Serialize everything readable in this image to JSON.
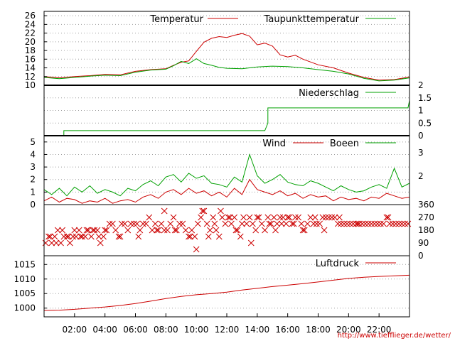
{
  "colors": {
    "red": "#cc0000",
    "green": "#00a000",
    "grid": "#a0a0a0",
    "frame": "#000000",
    "url": "#cc0000"
  },
  "source_url": "http://www.tiefflieger.de/wetter/",
  "x_ticks": [
    "02:00",
    "04:00",
    "06:00",
    "08:00",
    "10:00",
    "12:00",
    "14:00",
    "16:00",
    "18:00",
    "20:00",
    "22:00"
  ],
  "x_tick_hours": [
    2,
    4,
    6,
    8,
    10,
    12,
    14,
    16,
    18,
    20,
    22
  ],
  "chart_data": [
    {
      "type": "line",
      "x_unit": "hour of day",
      "xlim": [
        0,
        24
      ],
      "ylim": [
        10,
        27
      ],
      "y_ticks": [
        10,
        12,
        14,
        16,
        18,
        20,
        22,
        24,
        26
      ],
      "legend": "top-right",
      "grid": true,
      "series": [
        {
          "name": "Temperatur",
          "color": "#cc0000",
          "x": [
            0,
            1,
            2,
            3,
            4,
            5,
            6,
            7,
            8,
            8.5,
            9,
            9.5,
            10,
            10.5,
            11,
            11.5,
            12,
            12.5,
            13,
            13.5,
            14,
            14.5,
            15,
            15.5,
            16,
            16.5,
            17,
            18,
            19,
            20,
            21,
            22,
            23,
            24
          ],
          "y": [
            12.0,
            11.7,
            12.0,
            12.2,
            12.5,
            12.4,
            13.2,
            13.6,
            13.8,
            14.6,
            15.3,
            15.6,
            17.8,
            19.9,
            20.8,
            21.2,
            21.0,
            21.5,
            21.9,
            21.3,
            19.3,
            19.7,
            19.0,
            17.0,
            16.5,
            16.9,
            16.0,
            14.7,
            14.0,
            12.8,
            11.8,
            11.2,
            11.3,
            11.9
          ]
        },
        {
          "name": "Taupunkttemperatur",
          "color": "#00a000",
          "x": [
            0,
            1,
            2,
            3,
            4,
            5,
            6,
            7,
            8,
            8.5,
            9,
            9.5,
            10,
            10.5,
            11,
            11.5,
            12,
            13,
            14,
            15,
            16,
            17,
            18,
            19,
            20,
            21,
            22,
            23,
            24
          ],
          "y": [
            11.8,
            11.5,
            11.8,
            12.1,
            12.3,
            12.2,
            13.0,
            13.5,
            13.7,
            14.5,
            15.5,
            15.0,
            16.1,
            15.0,
            14.6,
            14.1,
            13.9,
            13.8,
            14.2,
            14.4,
            14.3,
            14.0,
            13.6,
            13.2,
            12.6,
            11.6,
            11.0,
            11.2,
            11.7
          ]
        }
      ]
    },
    {
      "type": "line",
      "x_unit": "hour of day",
      "xlim": [
        0,
        24
      ],
      "ylim": [
        0,
        2
      ],
      "y_ticks": [
        "0",
        "0.5",
        "1",
        "1.5",
        "2"
      ],
      "legend": "top-right",
      "grid": true,
      "series": [
        {
          "name": "Niederschlag",
          "color": "#00a000",
          "x": [
            0,
            1.3,
            1.3,
            14.5,
            14.7,
            14.7,
            23.9,
            24
          ],
          "y": [
            0,
            0,
            0.2,
            0.2,
            0.5,
            1.1,
            1.1,
            1.4
          ]
        }
      ]
    },
    {
      "type": "line",
      "x_unit": "hour of day",
      "xlim": [
        0,
        24
      ],
      "ylim": [
        0,
        5.5
      ],
      "y_ticks": [
        0,
        1,
        2,
        3,
        4,
        5
      ],
      "y2_ticks": [
        "2",
        "3"
      ],
      "legend": "top-right",
      "grid": true,
      "series": [
        {
          "name": "Wind",
          "color": "#cc0000",
          "x": [
            0,
            0.5,
            1,
            1.5,
            2,
            2.5,
            3,
            3.5,
            4,
            4.5,
            5,
            5.5,
            6,
            6.5,
            7,
            7.5,
            8,
            8.5,
            9,
            9.5,
            10,
            10.5,
            11,
            11.5,
            12,
            12.5,
            13,
            13.5,
            14,
            14.5,
            15,
            15.5,
            16,
            16.5,
            17,
            17.5,
            18,
            18.5,
            19,
            19.5,
            20,
            20.5,
            21,
            21.5,
            22,
            22.5,
            23,
            23.5,
            24
          ],
          "y": [
            0.3,
            0.6,
            0.2,
            0.5,
            0.4,
            0.1,
            0.3,
            0.2,
            0.5,
            0.1,
            0.3,
            0.4,
            0.2,
            0.6,
            0.8,
            0.5,
            1.0,
            1.2,
            0.8,
            1.3,
            0.9,
            1.1,
            0.7,
            1.0,
            0.6,
            1.3,
            0.8,
            2.0,
            1.2,
            1.0,
            0.8,
            1.1,
            0.7,
            0.9,
            0.5,
            0.8,
            0.6,
            0.7,
            0.3,
            0.6,
            0.4,
            0.5,
            0.3,
            0.6,
            0.5,
            0.9,
            0.7,
            0.5,
            0.6
          ]
        },
        {
          "name": "Boeen",
          "color": "#00a000",
          "x": [
            0,
            0.5,
            1,
            1.5,
            2,
            2.5,
            3,
            3.5,
            4,
            4.5,
            5,
            5.5,
            6,
            6.5,
            7,
            7.5,
            8,
            8.5,
            9,
            9.5,
            10,
            10.5,
            11,
            11.5,
            12,
            12.5,
            13,
            13.5,
            14,
            14.5,
            15,
            15.5,
            16,
            16.5,
            17,
            17.5,
            18,
            18.5,
            19,
            19.5,
            20,
            20.5,
            21,
            21.5,
            22,
            22.5,
            23,
            23.5,
            24
          ],
          "y": [
            1.2,
            0.8,
            1.3,
            0.7,
            1.4,
            1.0,
            1.5,
            0.9,
            1.2,
            1.0,
            0.7,
            1.3,
            1.1,
            1.6,
            1.9,
            1.5,
            2.2,
            2.4,
            1.8,
            2.5,
            2.1,
            2.3,
            1.7,
            1.6,
            1.4,
            2.2,
            1.8,
            4.0,
            2.3,
            1.7,
            2.0,
            2.4,
            1.8,
            1.6,
            1.5,
            1.9,
            1.7,
            1.4,
            1.1,
            1.5,
            1.2,
            1.0,
            1.1,
            1.4,
            1.6,
            1.3,
            2.9,
            1.4,
            1.7
          ]
        }
      ]
    },
    {
      "type": "scatter",
      "x_unit": "hour of day",
      "y_unit": "wind direction (degrees)",
      "xlim": [
        0,
        24
      ],
      "ylim": [
        0,
        360
      ],
      "y_ticks": [
        "0",
        "90",
        "180",
        "270",
        "360"
      ],
      "grid": false,
      "series": [
        {
          "color": "#cc0000",
          "x": [
            0.1,
            0.3,
            0.5,
            0.7,
            0.9,
            1.1,
            1.3,
            1.5,
            1.7,
            1.9,
            2.1,
            2.3,
            2.5,
            2.7,
            2.9,
            3.1,
            3.3,
            3.5,
            3.7,
            3.9,
            4.1,
            4.3,
            4.5,
            4.7,
            4.9,
            5.1,
            5.3,
            5.5,
            5.7,
            5.9,
            6.1,
            6.3,
            6.5,
            6.7,
            6.9,
            7.1,
            7.3,
            7.5,
            7.7,
            7.9,
            8.1,
            8.3,
            8.5,
            8.7,
            8.9,
            9.1,
            9.3,
            9.5,
            9.7,
            9.9,
            10.1,
            10.3,
            10.5,
            10.7,
            10.9,
            11.1,
            11.3,
            11.5,
            11.7,
            11.9,
            12.1,
            12.3,
            12.5,
            12.7,
            12.9,
            13.1,
            13.3,
            13.5,
            13.7,
            13.9,
            14.1,
            14.3,
            14.5,
            14.7,
            14.9,
            15.1,
            15.3,
            15.5,
            15.7,
            15.9,
            16.1,
            16.3,
            16.5,
            16.7,
            16.9,
            17.1,
            17.3,
            17.5,
            17.7,
            17.9,
            18.1,
            18.3,
            18.5,
            18.7,
            18.9,
            19.1,
            19.3,
            19.5,
            19.7,
            19.9,
            20.1,
            20.3,
            20.5,
            20.7,
            20.9,
            21.1,
            21.3,
            21.5,
            21.7,
            21.9,
            22.1,
            22.3,
            22.5,
            22.7,
            22.9,
            23.1,
            23.3,
            23.5,
            23.7,
            23.9,
            0.4,
            0.8,
            1.2,
            1.6,
            2.0,
            2.4,
            2.8,
            3.2,
            3.6,
            4.0,
            5.0,
            6.2,
            7.4,
            7.9,
            8.6,
            9.6,
            10.0,
            10.4,
            10.8,
            11.2,
            11.6,
            12.2,
            12.6,
            13.0,
            13.6,
            14.0,
            14.8,
            15.2,
            15.6,
            16.0,
            16.4,
            17.0,
            17.8,
            18.4,
            19.4,
            20.6,
            22.6
          ],
          "y": [
            90,
            135,
            90,
            135,
            180,
            90,
            135,
            135,
            90,
            135,
            135,
            180,
            135,
            135,
            180,
            135,
            180,
            180,
            90,
            135,
            180,
            225,
            225,
            180,
            135,
            225,
            225,
            180,
            225,
            225,
            225,
            180,
            225,
            225,
            270,
            180,
            225,
            180,
            225,
            180,
            180,
            225,
            270,
            180,
            225,
            225,
            180,
            135,
            180,
            135,
            225,
            270,
            315,
            225,
            180,
            270,
            180,
            135,
            270,
            225,
            270,
            225,
            270,
            180,
            135,
            270,
            225,
            270,
            225,
            180,
            270,
            225,
            180,
            270,
            225,
            270,
            225,
            270,
            270,
            225,
            270,
            225,
            270,
            270,
            225,
            180,
            225,
            270,
            225,
            225,
            225,
            270,
            270,
            270,
            270,
            270,
            225,
            225,
            225,
            225,
            225,
            225,
            225,
            225,
            225,
            225,
            225,
            225,
            225,
            225,
            225,
            225,
            270,
            225,
            225,
            225,
            225,
            225,
            225,
            225,
            135,
            90,
            180,
            135,
            180,
            135,
            180,
            180,
            135,
            180,
            135,
            135,
            180,
            315,
            180,
            135,
            45,
            315,
            135,
            225,
            315,
            270,
            180,
            225,
            90,
            270,
            225,
            180,
            225,
            270,
            225,
            180,
            270,
            180,
            270,
            225,
            270
          ]
        }
      ]
    },
    {
      "type": "line",
      "x_unit": "hour of day",
      "xlim": [
        0,
        24
      ],
      "ylim": [
        997,
        1018
      ],
      "y_ticks": [
        1000,
        1005,
        1010,
        1015
      ],
      "legend": "top-right",
      "grid": true,
      "series": [
        {
          "name": "Luftdruck",
          "color": "#cc0000",
          "x": [
            0,
            1,
            2,
            3,
            4,
            5,
            6,
            7,
            8,
            9,
            10,
            11,
            12,
            13,
            14,
            15,
            16,
            17,
            18,
            19,
            20,
            21,
            22,
            23,
            24
          ],
          "y": [
            999.2,
            999.3,
            999.6,
            1000.0,
            1000.4,
            1000.9,
            1001.6,
            1002.4,
            1003.3,
            1004.0,
            1004.6,
            1005.0,
            1005.5,
            1006.2,
            1006.8,
            1007.4,
            1007.9,
            1008.4,
            1009.0,
            1009.6,
            1010.2,
            1010.6,
            1010.9,
            1011.1,
            1011.3
          ]
        }
      ]
    }
  ]
}
